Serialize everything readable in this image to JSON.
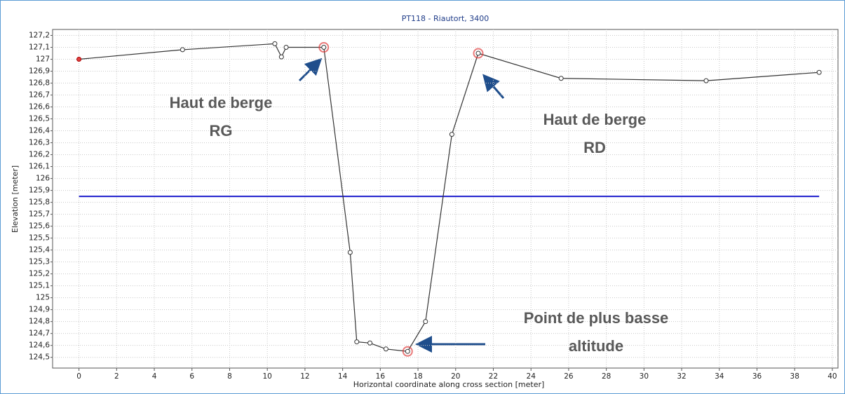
{
  "chart_data": {
    "type": "line",
    "title": "PT118 - Riautort, 3400",
    "x_label": "Horizontal coordinate along cross section [meter]",
    "y_label": "Elevation [meter]",
    "x": [
      0,
      5.5,
      10.4,
      10.75,
      11.0,
      13.0,
      14.4,
      14.75,
      15.45,
      16.3,
      17.45,
      18.4,
      19.8,
      21.2,
      25.6,
      33.3,
      39.3
    ],
    "series": [
      {
        "name": "Elevation",
        "color": "#333333",
        "values": [
          127.0,
          127.08,
          127.13,
          127.02,
          127.1,
          127.1,
          125.38,
          124.63,
          124.62,
          124.57,
          124.55,
          124.8,
          126.37,
          127.05,
          126.84,
          126.82,
          126.89
        ]
      }
    ],
    "highlighted": [
      5,
      10,
      13
    ],
    "highlight_color": "#e04040",
    "water_level": 125.85,
    "water_color": "#1a1acc",
    "xlim": [
      -1.4,
      40.3
    ],
    "ylim": [
      124.41,
      127.25
    ],
    "xticks": [
      0,
      2,
      4,
      6,
      8,
      10,
      12,
      14,
      16,
      18,
      20,
      22,
      24,
      26,
      28,
      30,
      32,
      34,
      36,
      38,
      40
    ],
    "yticks": [
      {
        "value": 124.5,
        "label": "124,5"
      },
      {
        "value": 124.6,
        "label": "124,6"
      },
      {
        "value": 124.7,
        "label": "124,7"
      },
      {
        "value": 124.8,
        "label": "124,8"
      },
      {
        "value": 124.9,
        "label": "124,9"
      },
      125,
      {
        "value": 125.1,
        "label": "125,1"
      },
      {
        "value": 125.2,
        "label": "125,2"
      },
      {
        "value": 125.3,
        "label": "125,3"
      },
      {
        "value": 125.4,
        "label": "125,4"
      },
      {
        "value": 125.5,
        "label": "125,5"
      },
      {
        "value": 125.6,
        "label": "125,6"
      },
      {
        "value": 125.7,
        "label": "125,7"
      },
      {
        "value": 125.8,
        "label": "125,8"
      },
      {
        "value": 125.9,
        "label": "125,9"
      },
      126,
      {
        "value": 126.1,
        "label": "126,1"
      },
      {
        "value": 126.2,
        "label": "126,2"
      },
      {
        "value": 126.3,
        "label": "126,3"
      },
      {
        "value": 126.4,
        "label": "126,4"
      },
      {
        "value": 126.5,
        "label": "126,5"
      },
      {
        "value": 126.6,
        "label": "126,6"
      },
      {
        "value": 126.7,
        "label": "126,7"
      },
      {
        "value": 126.8,
        "label": "126,8"
      },
      {
        "value": 126.9,
        "label": "126,9"
      },
      127,
      {
        "value": 127.1,
        "label": "127,1"
      },
      {
        "value": 127.2,
        "label": "127,2"
      }
    ],
    "grid": true,
    "annotations": [
      [
        "Haut de berge",
        "RG"
      ],
      [
        "Haut de berge",
        "RD"
      ],
      [
        "Point de plus basse",
        "altitude"
      ]
    ]
  }
}
